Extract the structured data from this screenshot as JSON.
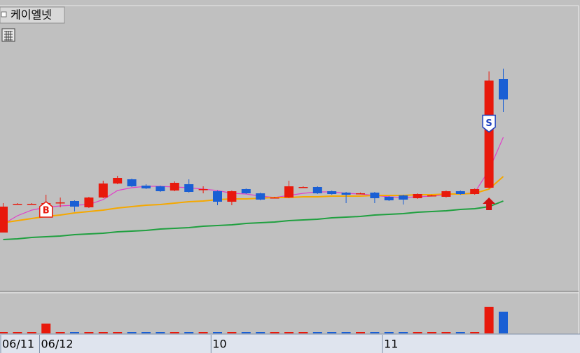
{
  "chart_data": {
    "type": "candlestick",
    "title": "케이엘넷",
    "categories": [
      "06/11",
      null,
      null,
      "06/12",
      null,
      null,
      null,
      null,
      null,
      null,
      null,
      null,
      null,
      null,
      null,
      "10",
      null,
      null,
      null,
      null,
      null,
      null,
      null,
      null,
      null,
      null,
      null,
      "11",
      null,
      null,
      null,
      null,
      null,
      null,
      null,
      null
    ],
    "open": [
      88,
      129,
      129,
      130,
      131,
      133,
      124,
      138,
      158,
      164,
      155,
      154,
      148,
      157,
      150,
      147,
      132,
      150,
      144,
      138,
      138,
      153,
      153,
      147,
      145,
      144,
      145,
      139,
      141,
      137,
      141,
      139,
      147,
      143,
      152,
      307
    ],
    "close": [
      125,
      129,
      129,
      130,
      131,
      125,
      138,
      158,
      166,
      154,
      151,
      147,
      159,
      146,
      150,
      132,
      147,
      144,
      135,
      138,
      154,
      153,
      144,
      143,
      142,
      144,
      137,
      134,
      135,
      143,
      141,
      147,
      143,
      150,
      305,
      278
    ],
    "high": [
      130,
      130,
      130,
      142,
      138,
      134,
      139,
      162,
      169,
      165,
      157,
      155,
      161,
      164,
      154,
      148,
      148,
      151,
      145,
      139,
      162,
      154,
      154,
      148,
      146,
      145,
      146,
      140,
      142,
      144,
      142,
      148,
      148,
      151,
      318,
      322
    ],
    "low": [
      88,
      128,
      128,
      120,
      124,
      118,
      123,
      137,
      157,
      153,
      150,
      146,
      147,
      145,
      144,
      127,
      127,
      143,
      134,
      137,
      137,
      152,
      143,
      142,
      130,
      143,
      130,
      133,
      128,
      136,
      140,
      138,
      142,
      142,
      151,
      260
    ],
    "up_color": "#e8190c",
    "down_color": "#1a5fd4",
    "ylim": [
      0,
      420
    ],
    "moving_averages": [
      {
        "color": "#e040c8",
        "values": [
          100,
          112,
          120,
          124,
          126,
          127,
          128,
          135,
          148,
          152,
          154,
          154,
          153,
          152,
          150,
          148,
          144,
          143,
          140,
          138,
          141,
          144,
          146,
          146,
          144,
          143,
          141,
          139,
          138,
          139,
          140,
          142,
          143,
          145,
          177,
          224
        ]
      },
      {
        "color": "#f5a800",
        "values": [
          102,
          105,
          108,
          111,
          113,
          116,
          118,
          120,
          123,
          125,
          127,
          128,
          130,
          132,
          133,
          135,
          136,
          136,
          137,
          138,
          138,
          139,
          139,
          140,
          140,
          140,
          141,
          141,
          141,
          142,
          142,
          143,
          143,
          144,
          150,
          168
        ]
      },
      {
        "color": "#20a040",
        "values": [
          78,
          79,
          81,
          82,
          83,
          85,
          86,
          87,
          89,
          90,
          91,
          93,
          94,
          95,
          97,
          98,
          99,
          101,
          102,
          103,
          105,
          106,
          107,
          109,
          110,
          111,
          113,
          114,
          115,
          117,
          118,
          119,
          121,
          122,
          125,
          133
        ]
      }
    ],
    "volume": {
      "values": [
        2,
        2,
        2,
        14,
        2,
        2,
        2,
        2,
        2,
        2,
        2,
        2,
        2,
        2,
        2,
        2,
        2,
        2,
        2,
        2,
        2,
        2,
        2,
        2,
        2,
        2,
        2,
        2,
        2,
        2,
        2,
        2,
        2,
        2,
        38,
        31
      ],
      "ylim": [
        0,
        56
      ]
    },
    "signals": [
      {
        "label": "B",
        "index": 3,
        "color": "#e8190c"
      },
      {
        "label": "S",
        "index": 34,
        "color": "#1a3fc0"
      }
    ],
    "arrow_index": 34
  }
}
